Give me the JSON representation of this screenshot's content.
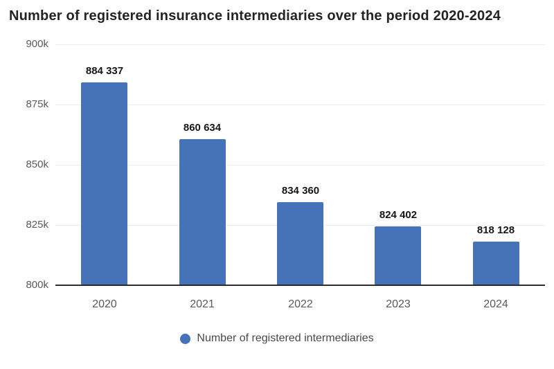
{
  "chart_data": {
    "type": "bar",
    "title": "Number of registered insurance intermediaries over the period 2020-2024",
    "categories": [
      "2020",
      "2021",
      "2022",
      "2023",
      "2024"
    ],
    "series": [
      {
        "name": "Number of registered intermediaries",
        "values": [
          884337,
          860634,
          834360,
          824402,
          818128
        ],
        "value_labels": [
          "884 337",
          "860 634",
          "834 360",
          "824 402",
          "818 128"
        ]
      }
    ],
    "xlabel": "",
    "ylabel": "",
    "ylim": [
      800000,
      900000
    ],
    "ytick_interval": 25000,
    "ytick_labels": [
      "800k",
      "825k",
      "850k",
      "875k",
      "900k"
    ],
    "grid": true,
    "legend_position": "bottom",
    "colors": {
      "bar": "#4672b9",
      "title_text": "#232323",
      "axis_text": "#595959",
      "value_label_text": "#161616",
      "gridline": "#ececec",
      "baseline": "#2b2b2b",
      "legend_text": "#484848",
      "background": "#ffffff"
    }
  }
}
